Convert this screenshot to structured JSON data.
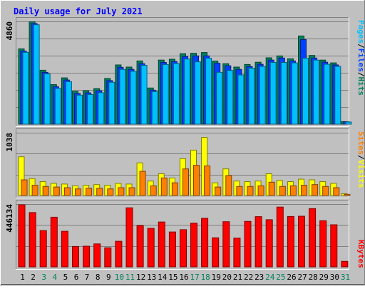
{
  "chart_data": {
    "type": "bar",
    "title": "Daily usage for July 2021",
    "days": [
      "1",
      "2",
      "3",
      "4",
      "5",
      "6",
      "7",
      "8",
      "9",
      "10",
      "11",
      "12",
      "13",
      "14",
      "15",
      "16",
      "17",
      "18",
      "19",
      "20",
      "21",
      "22",
      "23",
      "24",
      "25",
      "26",
      "27",
      "28",
      "29",
      "30",
      "31"
    ],
    "weekend_days": [
      "3",
      "4",
      "10",
      "11",
      "17",
      "18",
      "24",
      "25",
      "31"
    ],
    "panels": [
      {
        "id": "hits-files-pages",
        "scale_label": "4860",
        "ymax": 4860,
        "legend": [
          "Pages",
          "Files",
          "Hits"
        ],
        "series": [
          {
            "name": "Hits",
            "values": [
              3560,
              4840,
              2550,
              1870,
              2190,
              1550,
              1580,
              1680,
              2160,
              2800,
              2700,
              2990,
              1710,
              3030,
              3070,
              3330,
              3350,
              3390,
              2980,
              2860,
              2700,
              2820,
              2930,
              3140,
              3230,
              3090,
              4170,
              3250,
              3030,
              2900,
              120
            ]
          },
          {
            "name": "Files",
            "values": [
              3460,
              4760,
              2450,
              1770,
              2090,
              1450,
              1480,
              1580,
              2060,
              2690,
              2590,
              2860,
              1610,
              2920,
              2960,
              3200,
              3230,
              3230,
              2880,
              2760,
              2590,
              2720,
              2830,
              3030,
              3130,
              2990,
              4000,
              3130,
              2930,
              2800,
              110
            ]
          },
          {
            "name": "Pages",
            "values": [
              3400,
              4700,
              2380,
              1690,
              2010,
              1370,
              1400,
              1490,
              1980,
              2590,
              2500,
              2780,
              1540,
              2820,
              2870,
              3080,
              2950,
              3120,
              2450,
              2540,
              2330,
              2650,
              2730,
              2920,
              2920,
              2900,
              3120,
              3030,
              2830,
              2730,
              100
            ]
          }
        ]
      },
      {
        "id": "visits-sites",
        "scale_label": "1038",
        "ymax": 1038,
        "legend": [
          "Sites",
          "Visits"
        ],
        "series": [
          {
            "name": "Visits",
            "values": [
              640,
              280,
              230,
              200,
              190,
              160,
              170,
              180,
              170,
              200,
              190,
              540,
              240,
              360,
              290,
              610,
              750,
              960,
              210,
              440,
              240,
              230,
              240,
              360,
              250,
              230,
              270,
              260,
              230,
              200,
              30
            ]
          },
          {
            "name": "Sites",
            "values": [
              260,
              170,
              150,
              140,
              130,
              110,
              120,
              120,
              110,
              130,
              130,
              400,
              160,
              290,
              210,
              440,
              500,
              490,
              140,
              330,
              150,
              150,
              160,
              220,
              150,
              160,
              170,
              180,
              150,
              130,
              20
            ]
          }
        ]
      },
      {
        "id": "kbytes",
        "scale_label": "446134",
        "ymax": 446134,
        "legend": [
          "KBytes"
        ],
        "series": [
          {
            "name": "KBytes",
            "values": [
              441000,
              386000,
              258000,
              353000,
              253000,
              145000,
              147000,
              163000,
              136000,
              182000,
              420000,
              294000,
              274000,
              319000,
              248000,
              264000,
              311000,
              345000,
              207000,
              321000,
              205000,
              323000,
              357000,
              335000,
              425000,
              358000,
              360000,
              414000,
              328000,
              299000,
              39000
            ]
          }
        ]
      }
    ]
  },
  "colors": {
    "background": "#c0c0c0",
    "plot": "#c0c0c0",
    "grid": "#808080",
    "title": "#0000ff",
    "hits": "#00805c",
    "files": "#0040ff",
    "pages": "#00c0ff",
    "visits": "#ffff00",
    "sites": "#ff8000",
    "kbytes": "#ff0000",
    "weekday_label": "#000000",
    "weekend_label": "#00805c"
  }
}
